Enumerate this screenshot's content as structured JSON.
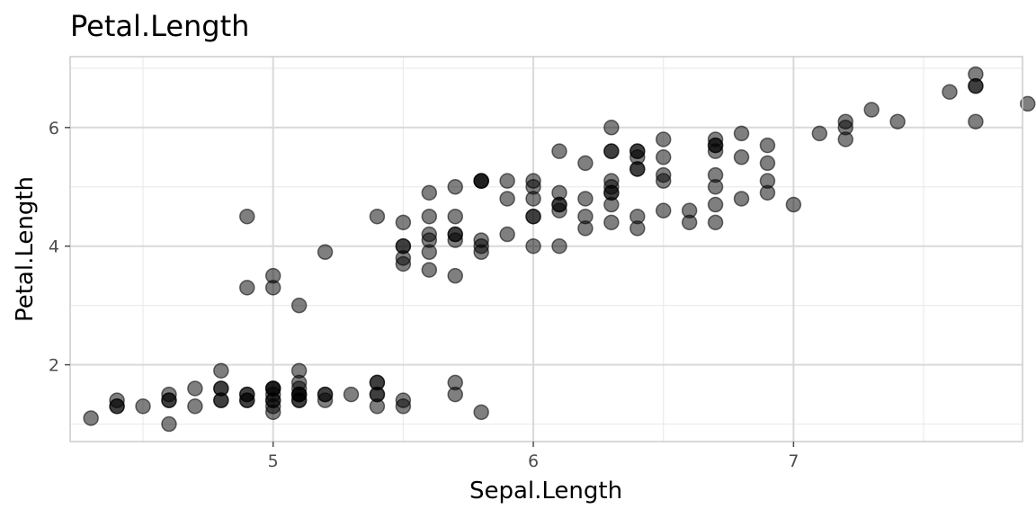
{
  "chart_data": {
    "type": "scatter",
    "title": "Petal.Length",
    "xlabel": "Sepal.Length",
    "ylabel": "Petal.Length",
    "xlim": [
      4.22,
      7.88
    ],
    "ylim": [
      0.705,
      7.195
    ],
    "x_ticks": [
      5,
      6,
      7
    ],
    "x_tick_labels": [
      "5",
      "6",
      "7"
    ],
    "x_minor_ticks": [
      4.5,
      5.5,
      6.5,
      7.5
    ],
    "y_ticks": [
      2,
      4,
      6
    ],
    "y_tick_labels": [
      "2",
      "4",
      "6"
    ],
    "y_minor_ticks": [
      1,
      3,
      5,
      7
    ],
    "grid": true,
    "point_color": "#000000",
    "point_alpha": 0.5,
    "x": [
      5.1,
      4.9,
      4.7,
      4.6,
      5.0,
      5.4,
      4.6,
      5.0,
      4.4,
      4.9,
      5.4,
      4.8,
      4.8,
      4.3,
      5.8,
      5.7,
      5.4,
      5.1,
      5.7,
      5.1,
      5.4,
      5.1,
      4.6,
      5.1,
      4.8,
      5.0,
      5.0,
      5.2,
      5.2,
      4.7,
      4.8,
      5.4,
      5.2,
      5.5,
      4.9,
      5.0,
      5.5,
      4.9,
      4.4,
      5.1,
      5.0,
      4.5,
      4.4,
      5.0,
      5.1,
      4.8,
      5.1,
      4.6,
      5.3,
      5.0,
      7.0,
      6.4,
      6.9,
      5.5,
      6.5,
      5.7,
      6.3,
      4.9,
      6.6,
      5.2,
      5.0,
      5.9,
      6.0,
      6.1,
      5.6,
      6.7,
      5.6,
      5.8,
      6.2,
      5.6,
      5.9,
      6.1,
      6.3,
      6.1,
      6.4,
      6.6,
      6.8,
      6.7,
      6.0,
      5.7,
      5.5,
      5.5,
      5.8,
      6.0,
      5.4,
      6.0,
      6.7,
      6.3,
      5.6,
      5.5,
      5.5,
      6.1,
      5.8,
      5.0,
      5.6,
      5.7,
      5.7,
      6.2,
      5.1,
      5.7,
      6.3,
      5.8,
      7.1,
      6.3,
      6.5,
      7.6,
      4.9,
      7.3,
      6.7,
      7.2,
      6.5,
      6.4,
      6.8,
      5.7,
      5.8,
      6.4,
      6.5,
      7.7,
      7.7,
      6.0,
      6.9,
      5.6,
      7.7,
      6.3,
      6.7,
      7.2,
      6.2,
      6.1,
      6.4,
      7.2,
      7.4,
      7.9,
      6.4,
      6.3,
      6.1,
      7.7,
      6.3,
      6.4,
      6.0,
      6.9,
      6.7,
      6.9,
      5.8,
      6.8,
      6.7,
      6.7,
      6.3,
      6.5,
      6.2,
      5.9
    ],
    "y": [
      1.4,
      1.4,
      1.3,
      1.5,
      1.4,
      1.7,
      1.4,
      1.5,
      1.4,
      1.5,
      1.5,
      1.6,
      1.4,
      1.1,
      1.2,
      1.5,
      1.3,
      1.4,
      1.7,
      1.5,
      1.7,
      1.5,
      1.0,
      1.7,
      1.9,
      1.6,
      1.6,
      1.5,
      1.4,
      1.6,
      1.6,
      1.5,
      1.5,
      1.4,
      1.5,
      1.2,
      1.3,
      1.4,
      1.3,
      1.5,
      1.3,
      1.3,
      1.3,
      1.6,
      1.9,
      1.4,
      1.6,
      1.4,
      1.5,
      1.4,
      4.7,
      4.5,
      4.9,
      4.0,
      4.6,
      4.5,
      4.7,
      3.3,
      4.6,
      3.9,
      3.5,
      4.2,
      4.0,
      4.7,
      3.6,
      4.4,
      4.5,
      4.1,
      4.5,
      3.9,
      4.8,
      4.0,
      4.9,
      4.7,
      4.3,
      4.4,
      4.8,
      5.0,
      4.5,
      3.5,
      3.8,
      3.7,
      3.9,
      5.1,
      4.5,
      4.5,
      4.7,
      4.4,
      4.1,
      4.0,
      4.4,
      4.6,
      4.0,
      3.3,
      4.2,
      4.2,
      4.2,
      4.3,
      3.0,
      4.1,
      6.0,
      5.1,
      5.9,
      5.6,
      5.8,
      6.6,
      4.5,
      6.3,
      5.8,
      6.1,
      5.1,
      5.3,
      5.5,
      5.0,
      5.1,
      5.3,
      5.5,
      6.7,
      6.9,
      5.0,
      5.7,
      4.9,
      6.7,
      4.9,
      5.7,
      6.0,
      4.8,
      4.9,
      5.6,
      5.8,
      6.1,
      6.4,
      5.6,
      5.1,
      5.6,
      6.1,
      5.6,
      5.5,
      4.8,
      5.4,
      5.6,
      5.1,
      5.1,
      5.9,
      5.7,
      5.2,
      5.0,
      5.2,
      5.4,
      5.1
    ]
  }
}
